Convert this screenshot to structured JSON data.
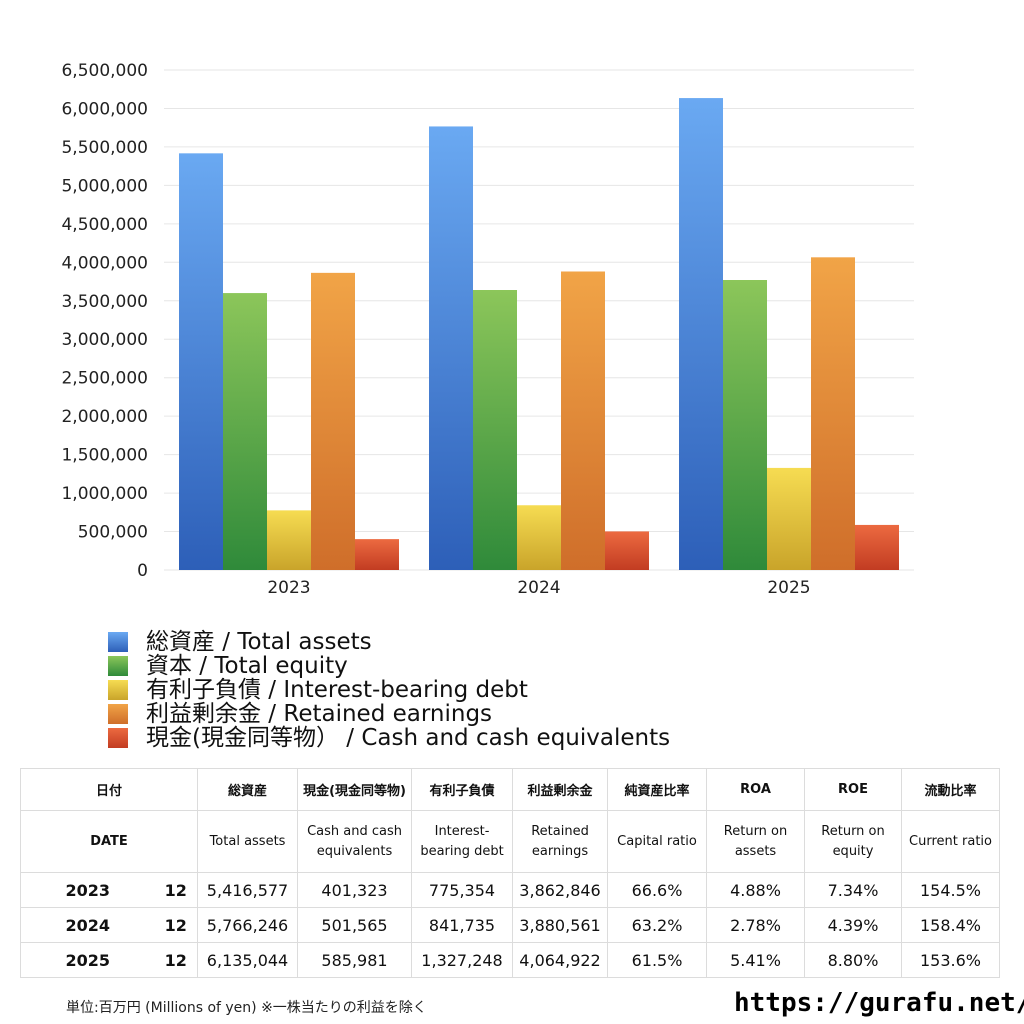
{
  "chart_data": {
    "type": "bar",
    "categories": [
      "2023",
      "2024",
      "2025"
    ],
    "ylim": [
      0,
      6500000
    ],
    "yticks": [
      "0",
      "500,000",
      "1,000,000",
      "1,500,000",
      "2,000,000",
      "2,500,000",
      "3,000,000",
      "3,500,000",
      "4,000,000",
      "4,500,000",
      "5,000,000",
      "5,500,000",
      "6,000,000",
      "6,500,000"
    ],
    "grid": true,
    "legend_position": "bottom",
    "series": [
      {
        "name": "総資産 / Total assets",
        "values": [
          5416577,
          5766246,
          6135044
        ],
        "color_top": "#6aa9f2",
        "color_bottom": "#2d5fb8"
      },
      {
        "name": "資本 / Total equity",
        "values": [
          3600000,
          3640000,
          3770000
        ],
        "color_top": "#8cc65a",
        "color_bottom": "#2f8a3a"
      },
      {
        "name": "有利子負債 / Interest-bearing debt",
        "values": [
          775354,
          841735,
          1327248
        ],
        "color_top": "#f6dc52",
        "color_bottom": "#c9a42a"
      },
      {
        "name": "利益剰余金 / Retained earnings",
        "values": [
          3862846,
          3880561,
          4064922
        ],
        "color_top": "#f1a447",
        "color_bottom": "#cf6e2a"
      },
      {
        "name": "現金(現金同等物） /  Cash and cash equivalents",
        "values": [
          401323,
          501565,
          585981
        ],
        "color_top": "#ec6a40",
        "color_bottom": "#c23c22"
      }
    ]
  },
  "table": {
    "header_jp": {
      "date": "日付",
      "total_assets": "総資産",
      "cash": "現金(現金同等物)",
      "debt": "有利子負債",
      "retained": "利益剰余金",
      "capital_ratio": "純資産比率",
      "roa": "ROA",
      "roe": "ROE",
      "current_ratio": "流動比率"
    },
    "header_en": {
      "date": "DATE",
      "total_assets": "Total assets",
      "cash": "Cash and cash equivalents",
      "debt": "Interest-bearing debt",
      "retained": "Retained earnings",
      "capital_ratio": "Capital ratio",
      "roa": "Return on assets",
      "roe": "Return on equity",
      "current_ratio": "Current ratio"
    },
    "rows": [
      {
        "year": "2023",
        "month": "12",
        "total_assets": "5,416,577",
        "cash": "401,323",
        "debt": "775,354",
        "retained": "3,862,846",
        "capital_ratio": "66.6%",
        "roa": "4.88%",
        "roe": "7.34%",
        "current_ratio": "154.5%"
      },
      {
        "year": "2024",
        "month": "12",
        "total_assets": "5,766,246",
        "cash": "501,565",
        "debt": "841,735",
        "retained": "3,880,561",
        "capital_ratio": "63.2%",
        "roa": "2.78%",
        "roe": "4.39%",
        "current_ratio": "158.4%"
      },
      {
        "year": "2025",
        "month": "12",
        "total_assets": "6,135,044",
        "cash": "585,981",
        "debt": "1,327,248",
        "retained": "4,064,922",
        "capital_ratio": "61.5%",
        "roa": "5.41%",
        "roe": "8.80%",
        "current_ratio": "153.6%"
      }
    ]
  },
  "footnote": "単位:百万円 (Millions of yen) ※一株当たりの利益を除く",
  "site": "https://gurafu.net/"
}
